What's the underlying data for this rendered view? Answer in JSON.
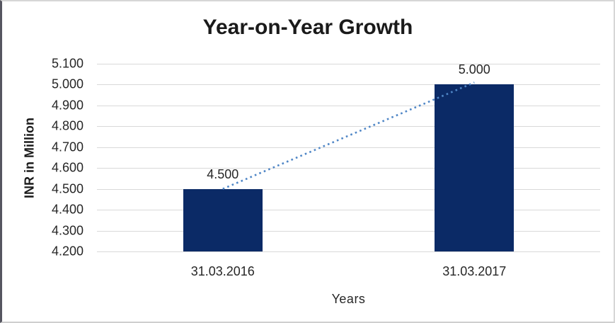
{
  "chart_data": {
    "type": "bar",
    "title": "Year-on-Year Growth",
    "xlabel": "Years",
    "ylabel": "INR in Million",
    "categories": [
      "31.03.2016",
      "31.03.2017"
    ],
    "values": [
      4.5,
      5.0
    ],
    "data_labels": [
      "4.500",
      "5.000"
    ],
    "ylim": [
      4.2,
      5.1
    ],
    "ytick_step": 0.1,
    "ytick_labels": [
      "5.100",
      "5.000",
      "4.900",
      "4.800",
      "4.700",
      "4.600",
      "4.500",
      "4.400",
      "4.300",
      "4.200"
    ],
    "grid": true,
    "legend_position": "none",
    "trendline": {
      "style": "dotted",
      "from_category": "31.03.2016",
      "from_value": 4.5,
      "to_category": "31.03.2017",
      "to_value": 5.0
    },
    "colors": {
      "bar": "#0b2a66",
      "trendline": "#4f86c6",
      "gridline": "#d9d9d9",
      "axis_text": "#262626",
      "title_text": "#1a1a1a",
      "background": "#ffffff"
    }
  }
}
